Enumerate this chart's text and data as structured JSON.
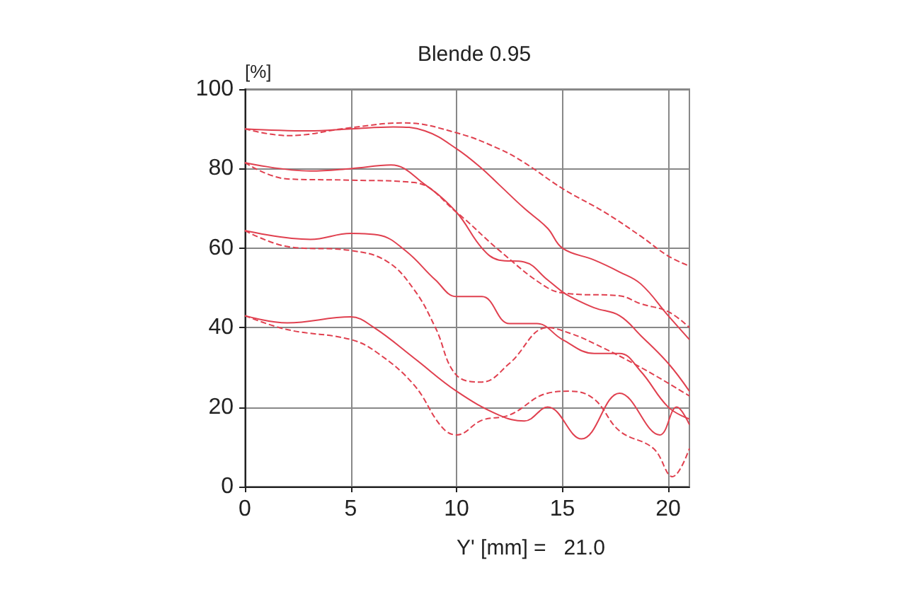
{
  "chart_data": {
    "type": "line",
    "title": "Blende 0.95",
    "xlabel": "Y' [mm] =   21.0",
    "ylabel": "[%]",
    "xlim": [
      0,
      21
    ],
    "xticks": [
      0,
      5,
      10,
      15,
      20
    ],
    "ylim": [
      0,
      100
    ],
    "yticks": [
      0,
      20,
      40,
      60,
      80,
      100
    ],
    "grid": true,
    "marker": "none",
    "series": [
      {
        "color": "#e0404f",
        "line_style": "solid",
        "x": [
          0,
          3,
          5,
          7,
          8.5,
          10,
          11.2,
          12,
          13.2,
          14.3,
          15,
          16.5,
          17.7,
          18.7,
          20,
          21
        ],
        "values": [
          90,
          89.5,
          90,
          90.5,
          89.5,
          85,
          80,
          76,
          70,
          65,
          60,
          57,
          54,
          51,
          43,
          37
        ]
      },
      {
        "color": "#e0404f",
        "line_style": "dashed",
        "x": [
          0,
          2,
          5,
          7.5,
          10,
          12,
          13.2,
          15,
          17,
          18.7,
          20,
          21
        ],
        "values": [
          90,
          88.3,
          90.3,
          91.5,
          89,
          85,
          81.5,
          75,
          69,
          63,
          58,
          55.5
        ]
      },
      {
        "color": "#e0404f",
        "line_style": "solid",
        "x": [
          0,
          3.1,
          5,
          6.9,
          8.5,
          10,
          11.2,
          12,
          13.2,
          14.3,
          15,
          15.4,
          16.5,
          17.7,
          18.7,
          20,
          21
        ],
        "values": [
          81.5,
          79.4,
          80,
          80.9,
          76,
          69,
          60,
          57,
          56.5,
          52,
          49,
          47.7,
          45,
          43,
          38,
          31,
          24
        ]
      },
      {
        "color": "#e0404f",
        "line_style": "dashed",
        "x": [
          0,
          2,
          5,
          8,
          10,
          12,
          14.3,
          15.4,
          17.7,
          18.7,
          20,
          21
        ],
        "values": [
          81.5,
          77.4,
          77.1,
          76.5,
          69,
          59.5,
          50,
          48.5,
          48,
          46,
          44,
          40
        ]
      },
      {
        "color": "#e0404f",
        "line_style": "solid",
        "x": [
          0,
          3.1,
          5,
          6.3,
          7.6,
          9,
          10,
          11.2,
          12.5,
          13.8,
          15,
          16.5,
          17.7,
          18.7,
          20,
          21
        ],
        "values": [
          64.4,
          62.2,
          63.7,
          63.3,
          59.3,
          52,
          47.8,
          47.8,
          41,
          41,
          37,
          33.5,
          33.5,
          29,
          20,
          17
        ]
      },
      {
        "color": "#e0404f",
        "line_style": "dashed",
        "x": [
          0,
          2,
          5,
          6.7,
          8,
          9,
          10,
          11.2,
          12.5,
          14.3,
          15.4,
          16.5,
          18.7,
          21
        ],
        "values": [
          64.4,
          60.4,
          59.4,
          56.7,
          49.5,
          40,
          28,
          26.3,
          31,
          40,
          38.5,
          36,
          30,
          22.8
        ]
      },
      {
        "color": "#e0404f",
        "line_style": "solid",
        "x": [
          0,
          2,
          5,
          6.1,
          8,
          10,
          12,
          13.2,
          14.3,
          15.9,
          17.7,
          19.6,
          20.4,
          21
        ],
        "values": [
          43,
          41.2,
          42.7,
          40,
          32.3,
          24,
          18,
          16.5,
          20,
          12,
          23.5,
          13,
          20,
          15.6
        ]
      },
      {
        "color": "#e0404f",
        "line_style": "dashed",
        "x": [
          0,
          2,
          5,
          6.3,
          8,
          9.3,
          10,
          11.2,
          12.5,
          14.3,
          15.4,
          16.5,
          17.7,
          19.3,
          20.2,
          21
        ],
        "values": [
          43,
          39.5,
          37,
          33.5,
          25.5,
          15,
          13,
          16.7,
          18,
          23.5,
          24,
          22,
          14,
          9.6,
          2.5,
          9.6
        ]
      }
    ]
  }
}
